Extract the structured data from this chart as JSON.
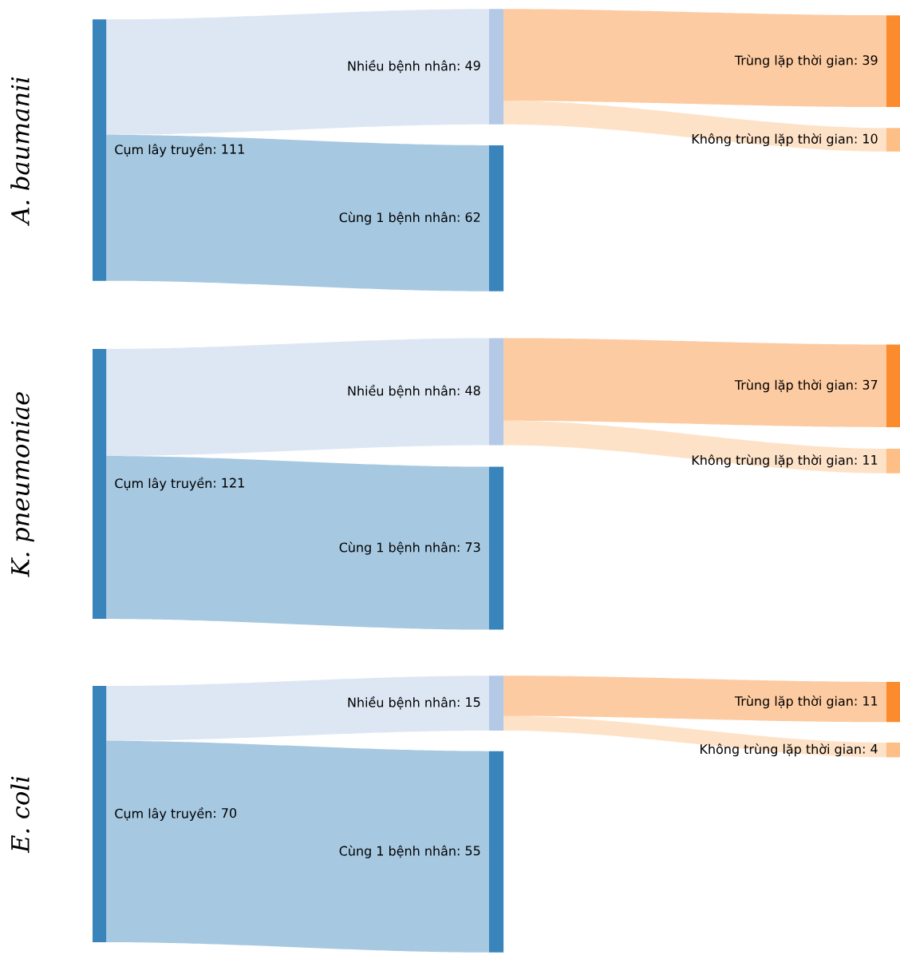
{
  "chart_data": [
    {
      "type": "other",
      "title": "A. baumanii",
      "categories": [
        "Cụm lây truyền",
        "Nhiều bệnh nhân",
        "Cùng 1 bệnh nhân",
        "Trùng lặp thời gian",
        "Không trùng lặp thời gian"
      ],
      "values": [
        111,
        49,
        62,
        39,
        10
      ],
      "value_labels": [
        ": 111",
        ": 49",
        ": 62",
        ": 39",
        ": 10"
      ],
      "colors": [
        "#3a84bc",
        "#b3c9e6",
        "#3a84bc",
        "#fb8c2e",
        "#fdbf86"
      ]
    },
    {
      "type": "other",
      "title": "K. pneumoniae",
      "categories": [
        "Cụm lây truyền",
        "Nhiều bệnh nhân",
        "Cùng 1 bệnh nhân",
        "Trùng lặp thời gian",
        "Không trùng lặp thời gian"
      ],
      "values": [
        121,
        48,
        73,
        37,
        11
      ],
      "value_labels": [
        ": 121",
        ": 48",
        ": 73",
        ": 37",
        ": 11"
      ],
      "colors": [
        "#3a84bc",
        "#b3c9e6",
        "#3a84bc",
        "#fb8c2e",
        "#fdbf86"
      ]
    },
    {
      "type": "other",
      "title": "E. coli",
      "categories": [
        "Cụm lây truyền",
        "Nhiều bệnh nhân",
        "Cùng 1 bệnh nhân",
        "Trùng lặp thời gian",
        "Không trùng lặp thời gian"
      ],
      "values": [
        70,
        15,
        55,
        11,
        4
      ],
      "value_labels": [
        ": 70",
        ": 15",
        ": 55",
        ": 11",
        ": 4"
      ],
      "colors": [
        "#3a84bc",
        "#b3c9e6",
        "#3a84bc",
        "#fb8c2e",
        "#fdbf86"
      ]
    }
  ]
}
